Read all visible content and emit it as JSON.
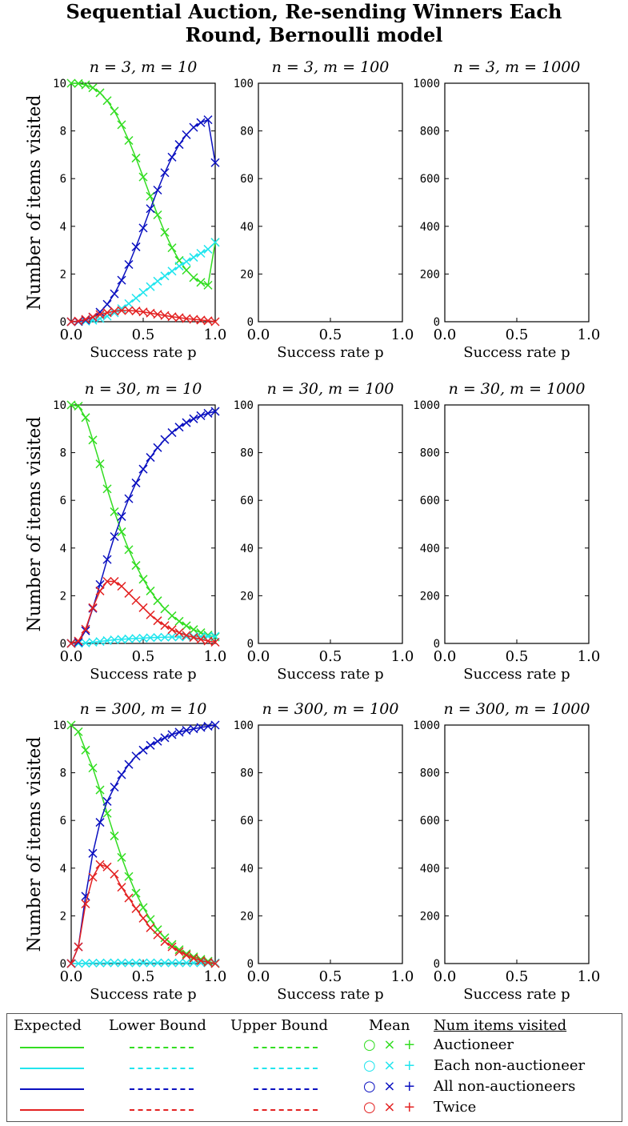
{
  "title": {
    "line1": "Sequential Auction, Re-sending Winners Each",
    "line2": "Round, Bernoulli model"
  },
  "chart_data": {
    "type": "line",
    "xlabel": "Success rate p",
    "ylabel": "Number of items visited",
    "xlim": [
      0,
      1
    ],
    "x_ticks": [
      "0.0",
      "0.5",
      "1.0"
    ],
    "x": [
      0.0,
      0.05,
      0.1,
      0.15,
      0.2,
      0.25,
      0.3,
      0.35,
      0.4,
      0.45,
      0.5,
      0.55,
      0.6,
      0.65,
      0.7,
      0.75,
      0.8,
      0.85,
      0.9,
      0.95,
      1.0
    ],
    "colors": {
      "auctioneer": "#33dd22",
      "each_non_auctioneer": "#22e5ee",
      "all_non_auctioneers": "#0a10c0",
      "twice": "#e32222"
    },
    "panels": [
      {
        "title": "n = 3, m = 10",
        "y_ticks": [
          "0",
          "2",
          "4",
          "6",
          "8",
          "10"
        ],
        "ylim": [
          0,
          10
        ],
        "series": {
          "auctioneer": [
            10.0,
            9.99,
            9.93,
            9.81,
            9.6,
            9.27,
            8.83,
            8.26,
            7.6,
            6.86,
            6.07,
            5.26,
            4.48,
            3.75,
            3.1,
            2.57,
            2.16,
            1.85,
            1.65,
            1.53,
            3.33
          ],
          "each_non_auctioneer": [
            0.0,
            0.0,
            0.02,
            0.06,
            0.13,
            0.23,
            0.37,
            0.55,
            0.76,
            0.99,
            1.23,
            1.47,
            1.7,
            1.92,
            2.12,
            2.33,
            2.52,
            2.7,
            2.87,
            3.04,
            3.33
          ],
          "all_non_auctioneers": [
            0.0,
            0.01,
            0.07,
            0.19,
            0.4,
            0.73,
            1.17,
            1.74,
            2.4,
            3.14,
            3.93,
            4.74,
            5.52,
            6.25,
            6.9,
            7.43,
            7.84,
            8.15,
            8.35,
            8.47,
            6.67
          ],
          "twice": [
            0.0,
            0.03,
            0.1,
            0.2,
            0.3,
            0.38,
            0.44,
            0.47,
            0.47,
            0.45,
            0.41,
            0.36,
            0.31,
            0.26,
            0.21,
            0.17,
            0.13,
            0.1,
            0.07,
            0.04,
            0.0
          ]
        }
      },
      {
        "title": "n = 3, m = 100",
        "y_ticks": [
          "0",
          "20",
          "40",
          "60",
          "80",
          "100"
        ],
        "ylim": [
          0,
          100
        ],
        "series": {}
      },
      {
        "title": "n = 3, m = 1000",
        "y_ticks": [
          "0",
          "200",
          "400",
          "600",
          "800",
          "1000"
        ],
        "ylim": [
          0,
          1000
        ],
        "series": {}
      },
      {
        "title": "n = 30, m = 10",
        "y_ticks": [
          "0",
          "2",
          "4",
          "6",
          "8",
          "10"
        ],
        "ylim": [
          0,
          10
        ],
        "series": {
          "auctioneer": [
            10.0,
            9.95,
            9.47,
            8.53,
            7.53,
            6.48,
            5.52,
            4.68,
            3.93,
            3.27,
            2.69,
            2.2,
            1.79,
            1.45,
            1.16,
            0.93,
            0.74,
            0.58,
            0.45,
            0.35,
            0.27
          ],
          "each_non_auctioneer": [
            0.0,
            0.0,
            0.02,
            0.05,
            0.08,
            0.12,
            0.15,
            0.17,
            0.19,
            0.21,
            0.22,
            0.24,
            0.25,
            0.26,
            0.27,
            0.27,
            0.28,
            0.29,
            0.29,
            0.3,
            0.3
          ],
          "all_non_auctioneers": [
            0.0,
            0.05,
            0.53,
            1.47,
            2.47,
            3.52,
            4.48,
            5.32,
            6.07,
            6.73,
            7.31,
            7.8,
            8.21,
            8.55,
            8.84,
            9.07,
            9.26,
            9.42,
            9.55,
            9.65,
            9.73
          ],
          "twice": [
            0.0,
            0.1,
            0.6,
            1.5,
            2.2,
            2.6,
            2.6,
            2.4,
            2.1,
            1.8,
            1.5,
            1.2,
            0.95,
            0.75,
            0.58,
            0.45,
            0.34,
            0.25,
            0.17,
            0.1,
            0.05
          ]
        }
      },
      {
        "title": "n = 30, m = 100",
        "y_ticks": [
          "0",
          "20",
          "40",
          "60",
          "80",
          "100"
        ],
        "ylim": [
          0,
          100
        ],
        "series": {}
      },
      {
        "title": "n = 30, m = 1000",
        "y_ticks": [
          "0",
          "200",
          "400",
          "600",
          "800",
          "1000"
        ],
        "ylim": [
          0,
          1000
        ],
        "series": {}
      },
      {
        "title": "n = 300, m = 10",
        "y_ticks": [
          "0",
          "2",
          "4",
          "6",
          "8",
          "10"
        ],
        "ylim": [
          0,
          10
        ],
        "series": {
          "auctioneer": [
            10.0,
            9.72,
            8.95,
            8.2,
            7.28,
            6.3,
            5.35,
            4.45,
            3.65,
            2.95,
            2.35,
            1.85,
            1.42,
            1.08,
            0.8,
            0.58,
            0.41,
            0.28,
            0.18,
            0.1,
            0.0
          ],
          "each_non_auctioneer": [
            0.0,
            0.0,
            0.01,
            0.02,
            0.02,
            0.03,
            0.03,
            0.03,
            0.03,
            0.03,
            0.03,
            0.03,
            0.03,
            0.03,
            0.03,
            0.03,
            0.03,
            0.03,
            0.03,
            0.03,
            0.03
          ],
          "all_non_auctioneers": [
            0.0,
            0.7,
            2.82,
            4.62,
            5.92,
            6.8,
            7.4,
            7.92,
            8.35,
            8.7,
            8.95,
            9.15,
            9.32,
            9.47,
            9.6,
            9.7,
            9.78,
            9.84,
            9.9,
            9.95,
            10.0
          ],
          "twice": [
            0.0,
            0.7,
            2.5,
            3.62,
            4.15,
            4.05,
            3.75,
            3.2,
            2.75,
            2.3,
            1.9,
            1.5,
            1.2,
            0.92,
            0.7,
            0.5,
            0.35,
            0.22,
            0.12,
            0.05,
            0.0
          ]
        }
      },
      {
        "title": "n = 300, m = 100",
        "y_ticks": [
          "0",
          "20",
          "40",
          "60",
          "80",
          "100"
        ],
        "ylim": [
          0,
          100
        ],
        "series": {}
      },
      {
        "title": "n = 300, m = 1000",
        "y_ticks": [
          "0",
          "200",
          "400",
          "600",
          "800",
          "1000"
        ],
        "ylim": [
          0,
          1000
        ],
        "series": {}
      }
    ]
  },
  "legend": {
    "headers": {
      "expected": "Expected",
      "lower": "Lower Bound",
      "upper": "Upper Bound",
      "mean": "Mean",
      "num": "Num items visited"
    },
    "mean_symbols": "○ × +",
    "rows": [
      {
        "label": "Auctioneer",
        "color": "#33dd22"
      },
      {
        "label": "Each non-auctioneer",
        "color": "#22e5ee"
      },
      {
        "label": "All non-auctioneers",
        "color": "#0a10c0"
      },
      {
        "label": "Twice",
        "color": "#e32222"
      }
    ]
  }
}
